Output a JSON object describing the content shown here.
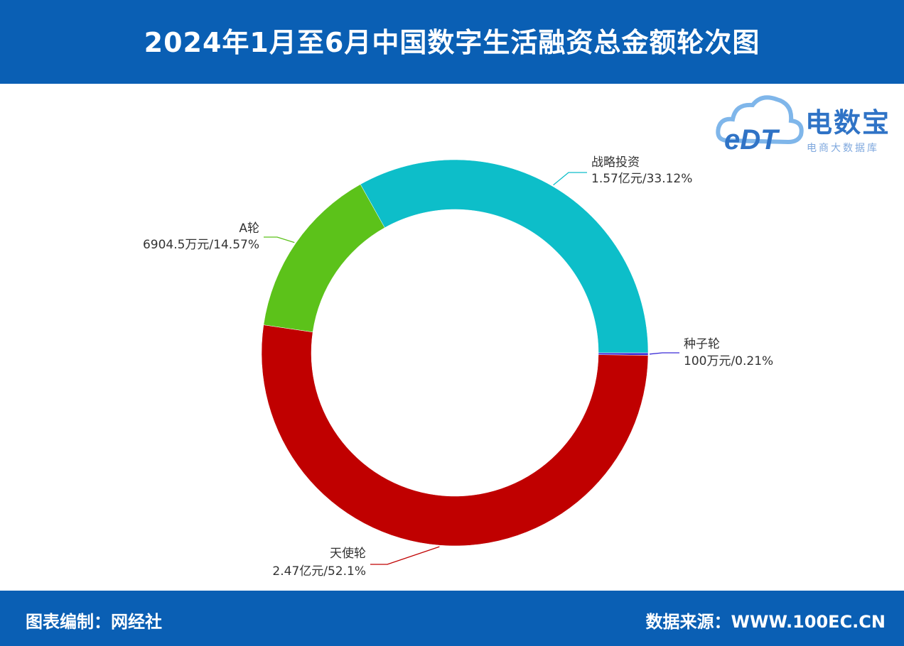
{
  "header": {
    "title": "2024年1月至6月中国数字生活融资总金额轮次图"
  },
  "footer": {
    "left": "图表编制：网经社",
    "right": "数据来源：WWW.100EC.CN"
  },
  "logo": {
    "mark": "eDT",
    "brand": "电数宝",
    "sub": "电商大数据库"
  },
  "chart_data": {
    "type": "donut",
    "slices": [
      {
        "name": "种子轮",
        "amount": "100万元",
        "percent": 0.21,
        "label": "100万元/0.21%",
        "color": "#3a2bd6"
      },
      {
        "name": "天使轮",
        "amount": "2.47亿元",
        "percent": 52.1,
        "label": "2.47亿元/52.1%",
        "color": "#c00000"
      },
      {
        "name": "A轮",
        "amount": "6904.5万元",
        "percent": 14.57,
        "label": "6904.5万元/14.57%",
        "color": "#5cc21a"
      },
      {
        "name": "战略投资",
        "amount": "1.57亿元",
        "percent": 33.12,
        "label": "1.57亿元/33.12%",
        "color": "#0dbec9"
      }
    ]
  }
}
